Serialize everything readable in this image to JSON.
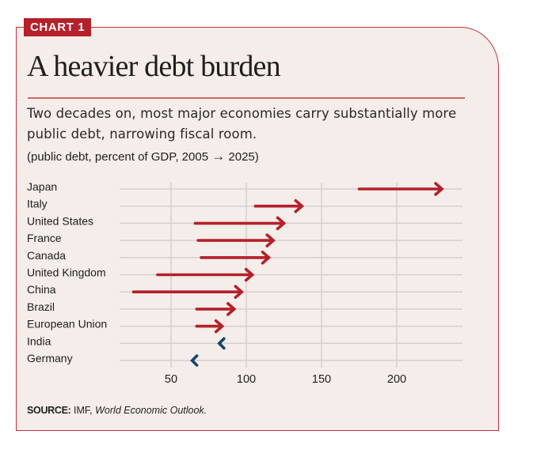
{
  "header": {
    "tag": "CHART 1",
    "title": "A heavier debt burden",
    "subtitle": "Two decades on, most major economies carry substantially more public debt, narrowing fiscal room.",
    "units_prefix": "(public debt, percent of GDP, 2005",
    "units_arrow": "→",
    "units_suffix": "2025)"
  },
  "source": {
    "label": "SOURCE:",
    "org": "IMF,",
    "publication": "World Economic Outlook."
  },
  "colors": {
    "increase": "#b5202a",
    "decrease": "#16456b",
    "grid": "#d6cfcb",
    "frame": "#c0353d",
    "background": "#f4ede9"
  },
  "chart_data": {
    "type": "arrow",
    "title": "A heavier debt burden",
    "xlabel": "",
    "ylabel": "",
    "xlim": [
      0,
      240
    ],
    "xticks": [
      50,
      100,
      150,
      200
    ],
    "grid": true,
    "legend": "none",
    "series": [
      {
        "name": "2005",
        "values": [
          175,
          106,
          66,
          68,
          70,
          41,
          25,
          67,
          67,
          84,
          67
        ]
      },
      {
        "name": "2025",
        "values": [
          230,
          137,
          125,
          118,
          115,
          104,
          97,
          92,
          84,
          82,
          64
        ]
      }
    ],
    "categories": [
      "Japan",
      "Italy",
      "United States",
      "France",
      "Canada",
      "United Kingdom",
      "China",
      "Brazil",
      "European Union",
      "India",
      "Germany"
    ]
  }
}
